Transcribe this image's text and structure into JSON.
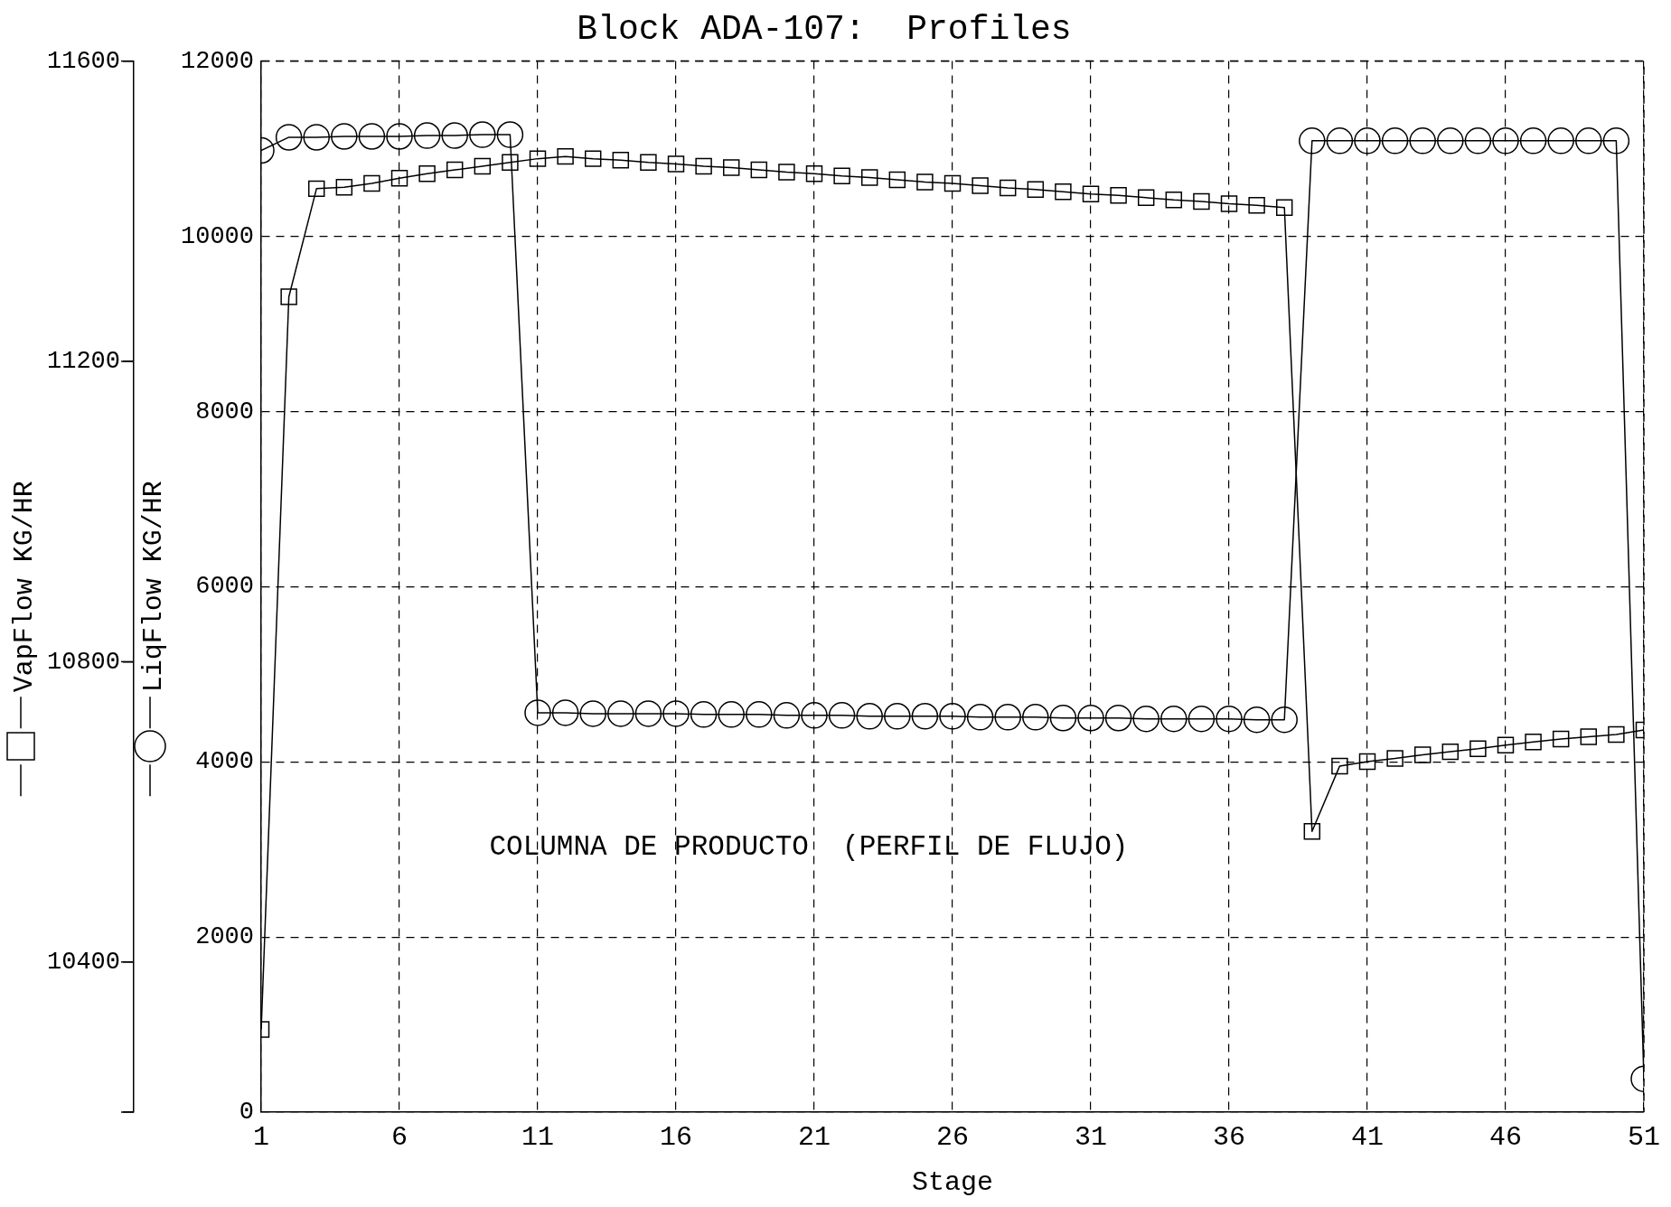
{
  "chart_data": {
    "type": "line",
    "title": "Block ADA-107:  Profiles",
    "xlabel": "Stage",
    "ylabel": "LiqFlow KG/HR",
    "y2label": "VapFlow KG/HR",
    "annotations": [
      "COLUMNA DE PRODUCTO  (PERFIL DE FLUJO)"
    ],
    "x": [
      1,
      2,
      3,
      4,
      5,
      6,
      7,
      8,
      9,
      10,
      11,
      12,
      13,
      14,
      15,
      16,
      17,
      18,
      19,
      20,
      21,
      22,
      23,
      24,
      25,
      26,
      27,
      28,
      29,
      30,
      31,
      32,
      33,
      34,
      35,
      36,
      37,
      38,
      39,
      40,
      41,
      42,
      43,
      44,
      45,
      46,
      47,
      48,
      49,
      50,
      51
    ],
    "series": [
      {
        "color": "#000000",
        "marker": "circle",
        "values": [
          10980,
          11130,
          11130,
          11140,
          11140,
          11140,
          11150,
          11150,
          11160,
          11160,
          4560,
          4560,
          4550,
          4550,
          4550,
          4550,
          4540,
          4540,
          4540,
          4530,
          4530,
          4530,
          4520,
          4520,
          4520,
          4520,
          4510,
          4510,
          4510,
          4500,
          4500,
          4500,
          4490,
          4490,
          4490,
          4490,
          4480,
          4480,
          11090,
          11090,
          11090,
          11090,
          11090,
          11090,
          11090,
          11090,
          11090,
          11090,
          11090,
          11090,
          380
        ]
      },
      {
        "color": "#000000",
        "marker": "square",
        "axis": "y2",
        "values": [
          10310,
          11286,
          11430,
          11432,
          11437,
          11444,
          11450,
          11455,
          11460,
          11465,
          11470,
          11473,
          11470,
          11468,
          11465,
          11463,
          11460,
          11458,
          11455,
          11452,
          11450,
          11447,
          11445,
          11442,
          11439,
          11437,
          11434,
          11431,
          11429,
          11426,
          11423,
          11421,
          11418,
          11415,
          11413,
          11410,
          11408,
          11405,
          10574,
          10661,
          10667,
          10671,
          10676,
          10680,
          10684,
          10689,
          10693,
          10697,
          10700,
          10703,
          10709
        ]
      }
    ],
    "xlim": [
      1,
      51
    ],
    "xticks": [
      1,
      6,
      11,
      16,
      21,
      26,
      31,
      36,
      41,
      46,
      51
    ],
    "ylim": [
      0,
      12000
    ],
    "yticks": [
      0,
      2000,
      4000,
      6000,
      8000,
      10000,
      12000
    ],
    "y2lim": [
      10200,
      11600
    ],
    "y2ticks": [
      {
        "value": 10200,
        "label": null
      },
      10400,
      10800,
      11200,
      11600
    ],
    "grid": true,
    "line_style": "solid",
    "legend": false
  }
}
